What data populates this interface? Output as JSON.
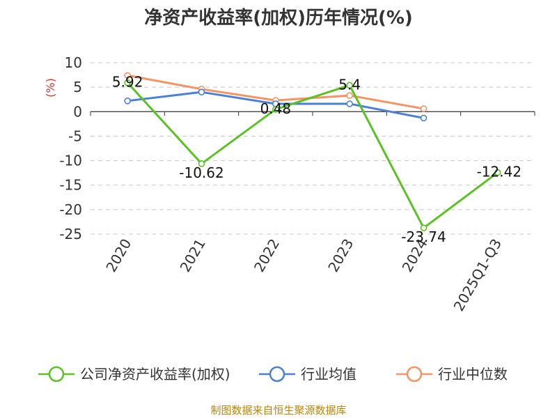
{
  "chart_data": {
    "type": "line",
    "title": "净资产收益率(加权)历年情况(%)",
    "ylabel": "(%)",
    "categories": [
      "2020",
      "2021",
      "2022",
      "2023",
      "2024",
      "2025Q1-Q3"
    ],
    "yticks": [
      10,
      5,
      0,
      -5,
      -10,
      -15,
      -20,
      -25
    ],
    "ylim": [
      -25,
      10
    ],
    "grid": true,
    "legend_position": "bottom",
    "series": [
      {
        "name": "公司净资产收益率(加权)",
        "color": "#5bc225",
        "values": [
          5.92,
          -10.62,
          0.48,
          5.4,
          -23.74,
          -12.42
        ],
        "labels": [
          "5.92",
          "-10.62",
          "0.48",
          "5.4",
          "-23.74",
          "-12.42"
        ]
      },
      {
        "name": "行业均值",
        "color": "#4a7fd6",
        "values": [
          2.2,
          4.0,
          1.6,
          1.6,
          -1.3,
          null
        ]
      },
      {
        "name": "行业中位数",
        "color": "#f59462",
        "values": [
          7.4,
          4.6,
          2.3,
          3.3,
          0.6,
          null
        ]
      }
    ]
  },
  "source": "制图数据来自恒生聚源数据库"
}
